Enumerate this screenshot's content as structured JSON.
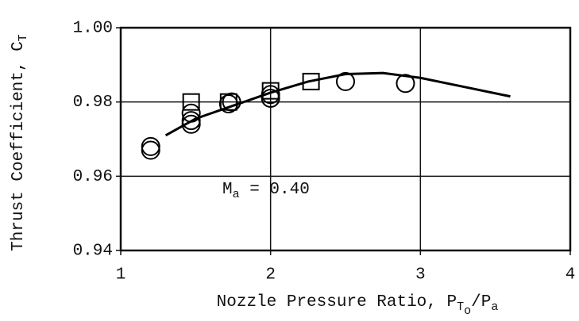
{
  "chart_data": {
    "type": "scatter",
    "y_label": [
      "Thrust Coefficient, C",
      "T"
    ],
    "x_label": [
      "Nozzle Pressure Ratio, P",
      "T",
      "o",
      "/P",
      "a"
    ],
    "annotation": [
      "M",
      "a",
      " = 0.40"
    ],
    "xlim": [
      1,
      4
    ],
    "ylim": [
      0.94,
      1.0
    ],
    "xticks": [
      1,
      2,
      3,
      4
    ],
    "yticks": [
      0.94,
      0.96,
      0.98,
      {
        "value": 1.0,
        "label": "1.00"
      }
    ],
    "grid": true,
    "series": [
      {
        "marker": "circle",
        "color": "#000000",
        "x": [
          1.2,
          1.2,
          1.47,
          1.47,
          1.47,
          1.72,
          1.74,
          2.0,
          2.0,
          2.5,
          2.9
        ],
        "values": [
          0.968,
          0.967,
          0.977,
          0.975,
          0.974,
          0.9795,
          0.98,
          0.981,
          0.982,
          0.9855,
          0.985
        ]
      },
      {
        "marker": "square",
        "color": "#000000",
        "x": [
          1.47,
          1.72,
          2.0,
          2.27
        ],
        "values": [
          0.98,
          0.98,
          0.983,
          0.9855
        ]
      },
      {
        "marker": "line",
        "color": "#000000",
        "x": [
          1.3,
          1.5,
          1.75,
          2.0,
          2.25,
          2.5,
          2.75,
          3.0,
          3.3,
          3.6
        ],
        "values": [
          0.971,
          0.9755,
          0.979,
          0.9825,
          0.9855,
          0.9875,
          0.9878,
          0.9865,
          0.984,
          0.9815
        ]
      }
    ]
  }
}
